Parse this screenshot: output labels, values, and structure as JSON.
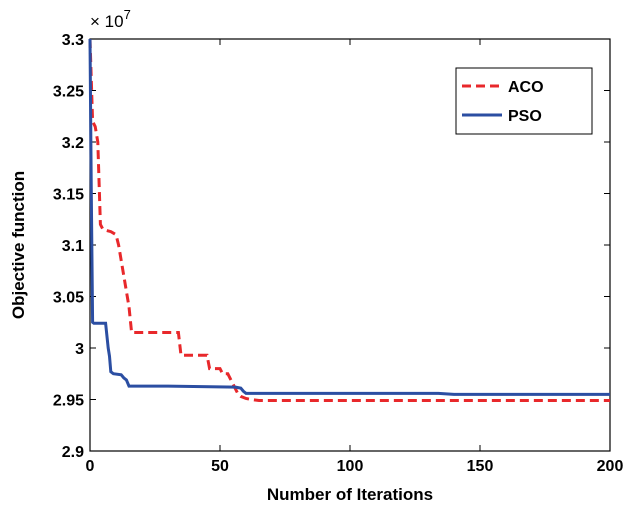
{
  "chart_data": {
    "type": "line",
    "title": "",
    "xlabel": "Number of Iterations",
    "ylabel": "Objective function",
    "y_exponent_label": "× 10",
    "y_exponent_power": "7",
    "xlim": [
      0,
      200
    ],
    "ylim": [
      2.9,
      3.3
    ],
    "x_ticks": [
      0,
      50,
      100,
      150,
      200
    ],
    "x_tick_labels": [
      "0",
      "50",
      "100",
      "150",
      "200"
    ],
    "y_ticks": [
      2.9,
      2.95,
      3.0,
      3.05,
      3.1,
      3.15,
      3.2,
      3.25,
      3.3
    ],
    "y_tick_labels": [
      "2.9",
      "2.95",
      "3",
      "3.05",
      "3.1",
      "3.15",
      "3.2",
      "3.25",
      "3.3"
    ],
    "grid": false,
    "legend_position": "top-right",
    "series": [
      {
        "name": "ACO",
        "color": "#e8282b",
        "style": "dashed",
        "x": [
          0,
          1,
          2,
          3,
          4,
          5,
          8,
          10,
          11,
          13,
          15,
          16,
          34,
          35,
          45,
          46,
          50,
          51,
          53,
          54,
          55,
          56,
          57,
          58,
          60,
          62,
          65,
          70,
          200
        ],
        "y": [
          3.3,
          3.22,
          3.215,
          3.2,
          3.12,
          3.115,
          3.113,
          3.11,
          3.1,
          3.07,
          3.04,
          3.015,
          3.015,
          2.993,
          2.993,
          2.98,
          2.98,
          2.975,
          2.975,
          2.97,
          2.965,
          2.96,
          2.955,
          2.953,
          2.951,
          2.95,
          2.949,
          2.949,
          2.949
        ]
      },
      {
        "name": "PSO",
        "color": "#2b4ea2",
        "style": "solid",
        "x": [
          0,
          0.5,
          1,
          1.5,
          2,
          6,
          7,
          7.5,
          8,
          9,
          12,
          13,
          14,
          15,
          30,
          56,
          58,
          59,
          60,
          134,
          140,
          200
        ],
        "y": [
          3.3,
          3.15,
          3.025,
          3.024,
          3.024,
          3.024,
          3.0,
          2.992,
          2.977,
          2.975,
          2.974,
          2.971,
          2.969,
          2.963,
          2.963,
          2.962,
          2.961,
          2.958,
          2.956,
          2.956,
          2.955,
          2.955
        ]
      }
    ]
  }
}
